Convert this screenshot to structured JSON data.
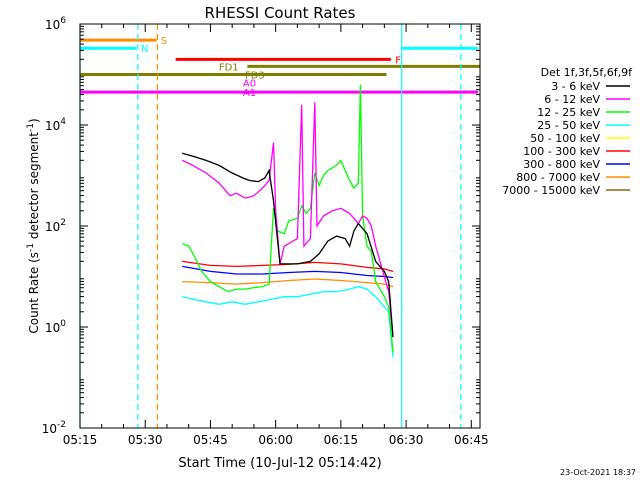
{
  "chart_data": {
    "type": "line",
    "title": "RHESSI Count Rates",
    "xlabel": "Start Time (10-Jul-12 05:14:42)",
    "ylabel_main": "Count Rate (s",
    "ylabel_sup1": "-1",
    "ylabel_mid": " detector segment",
    "ylabel_sup2": "-1",
    "ylabel_end": ")",
    "y_scale": "log",
    "ylim_exp": [
      -2,
      6
    ],
    "xlim_min": [
      0,
      92
    ],
    "x_ticks": [
      {
        "t": 0,
        "label": "05:15"
      },
      {
        "t": 15,
        "label": "05:30"
      },
      {
        "t": 30,
        "label": "05:45"
      },
      {
        "t": 45,
        "label": "06:00"
      },
      {
        "t": 60,
        "label": "06:15"
      },
      {
        "t": 75,
        "label": "06:30"
      },
      {
        "t": 90,
        "label": "06:45"
      }
    ],
    "y_ticks": [
      {
        "exp": -2,
        "label_base": "10",
        "label_exp": "-2"
      },
      {
        "exp": 0,
        "label_base": "10",
        "label_exp": "0"
      },
      {
        "exp": 2,
        "label_base": "10",
        "label_exp": "2"
      },
      {
        "exp": 4,
        "label_base": "10",
        "label_exp": "4"
      },
      {
        "exp": 6,
        "label_base": "10",
        "label_exp": "6"
      }
    ],
    "legend_title": "Det 1f,3f,5f,6f,9f",
    "legend_position": "right",
    "series": [
      {
        "name": "3 - 6 keV",
        "color": "#000000",
        "points": [
          [
            23.5,
            3.44
          ],
          [
            26,
            3.38
          ],
          [
            29,
            3.3
          ],
          [
            32,
            3.2
          ],
          [
            35,
            3.05
          ],
          [
            37.5,
            2.95
          ],
          [
            39,
            2.9
          ],
          [
            41,
            2.88
          ],
          [
            42.5,
            2.95
          ],
          [
            43.5,
            3.1
          ],
          [
            44.5,
            2.5
          ],
          [
            46,
            1.25
          ],
          [
            50,
            1.25
          ],
          [
            53,
            1.3
          ],
          [
            55,
            1.45
          ],
          [
            57,
            1.7
          ],
          [
            59,
            1.8
          ],
          [
            61,
            1.75
          ],
          [
            62,
            1.6
          ],
          [
            63,
            1.9
          ],
          [
            64,
            2.05
          ],
          [
            66,
            1.85
          ],
          [
            68,
            1.3
          ],
          [
            70,
            1.1
          ],
          [
            71,
            0.9
          ],
          [
            72,
            -0.2
          ]
        ]
      },
      {
        "name": "6 - 12 keV",
        "color": "#ff00ff",
        "points": [
          [
            23.5,
            3.3
          ],
          [
            26,
            3.2
          ],
          [
            29,
            3.05
          ],
          [
            32,
            2.85
          ],
          [
            34.5,
            2.6
          ],
          [
            36,
            2.65
          ],
          [
            38,
            2.55
          ],
          [
            40,
            2.6
          ],
          [
            42,
            2.75
          ],
          [
            43.5,
            2.9
          ],
          [
            44.5,
            3.65
          ],
          [
            45,
            2.3
          ],
          [
            46,
            1.25
          ],
          [
            47,
            1.6
          ],
          [
            49,
            1.7
          ],
          [
            50,
            1.75
          ],
          [
            51,
            4.4
          ],
          [
            51.5,
            1.6
          ],
          [
            53,
            1.75
          ],
          [
            54,
            4.45
          ],
          [
            54.5,
            2.0
          ],
          [
            56,
            2.2
          ],
          [
            58,
            2.3
          ],
          [
            60,
            2.35
          ],
          [
            62,
            2.25
          ],
          [
            64,
            2.05
          ],
          [
            65,
            2.2
          ],
          [
            66,
            2.15
          ],
          [
            67,
            2.0
          ],
          [
            68,
            1.6
          ],
          [
            70,
            1.0
          ],
          [
            71,
            0.7
          ],
          [
            72,
            -0.2
          ]
        ]
      },
      {
        "name": "12 - 25 keV",
        "color": "#00ff00",
        "points": [
          [
            23.5,
            1.65
          ],
          [
            25,
            1.6
          ],
          [
            26,
            1.45
          ],
          [
            28,
            1.1
          ],
          [
            30,
            0.9
          ],
          [
            32,
            0.8
          ],
          [
            34,
            0.7
          ],
          [
            36,
            0.75
          ],
          [
            38,
            0.75
          ],
          [
            40,
            0.78
          ],
          [
            42,
            0.8
          ],
          [
            43.5,
            0.85
          ],
          [
            44.5,
            2.35
          ],
          [
            45.5,
            1.9
          ],
          [
            47,
            1.85
          ],
          [
            48,
            2.1
          ],
          [
            50,
            2.15
          ],
          [
            51,
            2.4
          ],
          [
            52,
            2.25
          ],
          [
            53,
            2.35
          ],
          [
            54,
            3.05
          ],
          [
            55,
            2.8
          ],
          [
            56,
            3.0
          ],
          [
            57,
            3.1
          ],
          [
            58,
            3.15
          ],
          [
            59,
            3.2
          ],
          [
            60,
            3.3
          ],
          [
            61,
            3.1
          ],
          [
            62,
            2.9
          ],
          [
            63,
            2.75
          ],
          [
            64,
            2.85
          ],
          [
            64.5,
            4.8
          ],
          [
            65,
            2.2
          ],
          [
            66,
            1.6
          ],
          [
            67,
            1.5
          ],
          [
            68,
            0.9
          ],
          [
            70,
            0.6
          ],
          [
            71,
            0.4
          ],
          [
            72,
            -0.5
          ]
        ]
      },
      {
        "name": "25 - 50 keV",
        "color": "#00ffff",
        "points": [
          [
            23.5,
            0.6
          ],
          [
            26,
            0.55
          ],
          [
            29,
            0.5
          ],
          [
            32,
            0.45
          ],
          [
            35,
            0.5
          ],
          [
            38,
            0.45
          ],
          [
            41,
            0.5
          ],
          [
            44,
            0.55
          ],
          [
            47,
            0.6
          ],
          [
            50,
            0.6
          ],
          [
            53,
            0.65
          ],
          [
            56,
            0.7
          ],
          [
            59,
            0.7
          ],
          [
            62,
            0.75
          ],
          [
            64,
            0.8
          ],
          [
            66,
            0.75
          ],
          [
            68,
            0.6
          ],
          [
            70,
            0.4
          ],
          [
            71,
            0.3
          ],
          [
            72,
            -0.6
          ]
        ]
      },
      {
        "name": "50 - 100 keV",
        "color": "#ffff00",
        "points": []
      },
      {
        "name": "100 - 300 keV",
        "color": "#ff0000",
        "points": [
          [
            23.5,
            1.3
          ],
          [
            30,
            1.22
          ],
          [
            36,
            1.2
          ],
          [
            42,
            1.22
          ],
          [
            48,
            1.24
          ],
          [
            54,
            1.28
          ],
          [
            60,
            1.25
          ],
          [
            66,
            1.18
          ],
          [
            70,
            1.15
          ],
          [
            72,
            1.1
          ]
        ]
      },
      {
        "name": "300 - 800 keV",
        "color": "#0000ff",
        "points": [
          [
            23.5,
            1.2
          ],
          [
            30,
            1.1
          ],
          [
            36,
            1.05
          ],
          [
            42,
            1.05
          ],
          [
            48,
            1.08
          ],
          [
            54,
            1.1
          ],
          [
            60,
            1.08
          ],
          [
            66,
            1.02
          ],
          [
            70,
            1.0
          ],
          [
            72,
            0.98
          ]
        ]
      },
      {
        "name": "800 - 7000 keV",
        "color": "#ff8c00",
        "points": [
          [
            23.5,
            0.9
          ],
          [
            30,
            0.88
          ],
          [
            36,
            0.85
          ],
          [
            42,
            0.88
          ],
          [
            48,
            0.92
          ],
          [
            54,
            0.95
          ],
          [
            60,
            0.92
          ],
          [
            66,
            0.88
          ],
          [
            70,
            0.85
          ],
          [
            72,
            0.8
          ]
        ]
      },
      {
        "name": "7000 - 15000 keV",
        "color": "#8b6914",
        "points": []
      }
    ],
    "vertical_lines": [
      {
        "t": 0,
        "color": "#00ffff",
        "dash": false
      },
      {
        "t": 13.3,
        "color": "#00ffff",
        "dash": true
      },
      {
        "t": 17.8,
        "color": "#ff8c00",
        "dash": true
      },
      {
        "t": 74,
        "color": "#00ffff",
        "dash": false
      },
      {
        "t": 87.6,
        "color": "#00ffff",
        "dash": true
      }
    ],
    "flag_bars": [
      {
        "label": "S",
        "y_exp": 5.68,
        "t0": 0,
        "t1": 17.6,
        "color": "#ff8c00"
      },
      {
        "label": "N",
        "y_exp": 5.52,
        "t0": 0,
        "t1": 13.0,
        "color": "#00ffff"
      },
      {
        "label": "N2",
        "y_exp": 5.52,
        "t0": 74,
        "t1": 91.5,
        "color": "#00ffff",
        "nolabel": true
      },
      {
        "label": "F",
        "y_exp": 5.3,
        "t0": 22.0,
        "t1": 71.5,
        "color": "#ff0000"
      },
      {
        "label": "FD1",
        "y_exp": 5.16,
        "t0": 38.5,
        "t1": 92,
        "color": "#808000",
        "label_t": 36.5
      },
      {
        "label": "FD",
        "y_exp": 5.0,
        "t0": 0,
        "t1": 70.5,
        "color": "#808000",
        "nolabel": true
      },
      {
        "label": "FD3",
        "y_exp": 5.0,
        "t0": 45,
        "t1": 45,
        "color": "#808000",
        "label_t": 42.5,
        "noline": true
      },
      {
        "label": "A0",
        "y_exp": 4.84,
        "t0": 0,
        "t1": 0,
        "color": "#ff00ff",
        "label_t": 40.5,
        "noline": true
      },
      {
        "label": "A1",
        "y_exp": 4.65,
        "t0": 0,
        "t1": 91.5,
        "color": "#ff00ff",
        "label_t": 40.5
      }
    ]
  },
  "footer": {
    "timestamp": "23-Oct-2021 18:37"
  }
}
